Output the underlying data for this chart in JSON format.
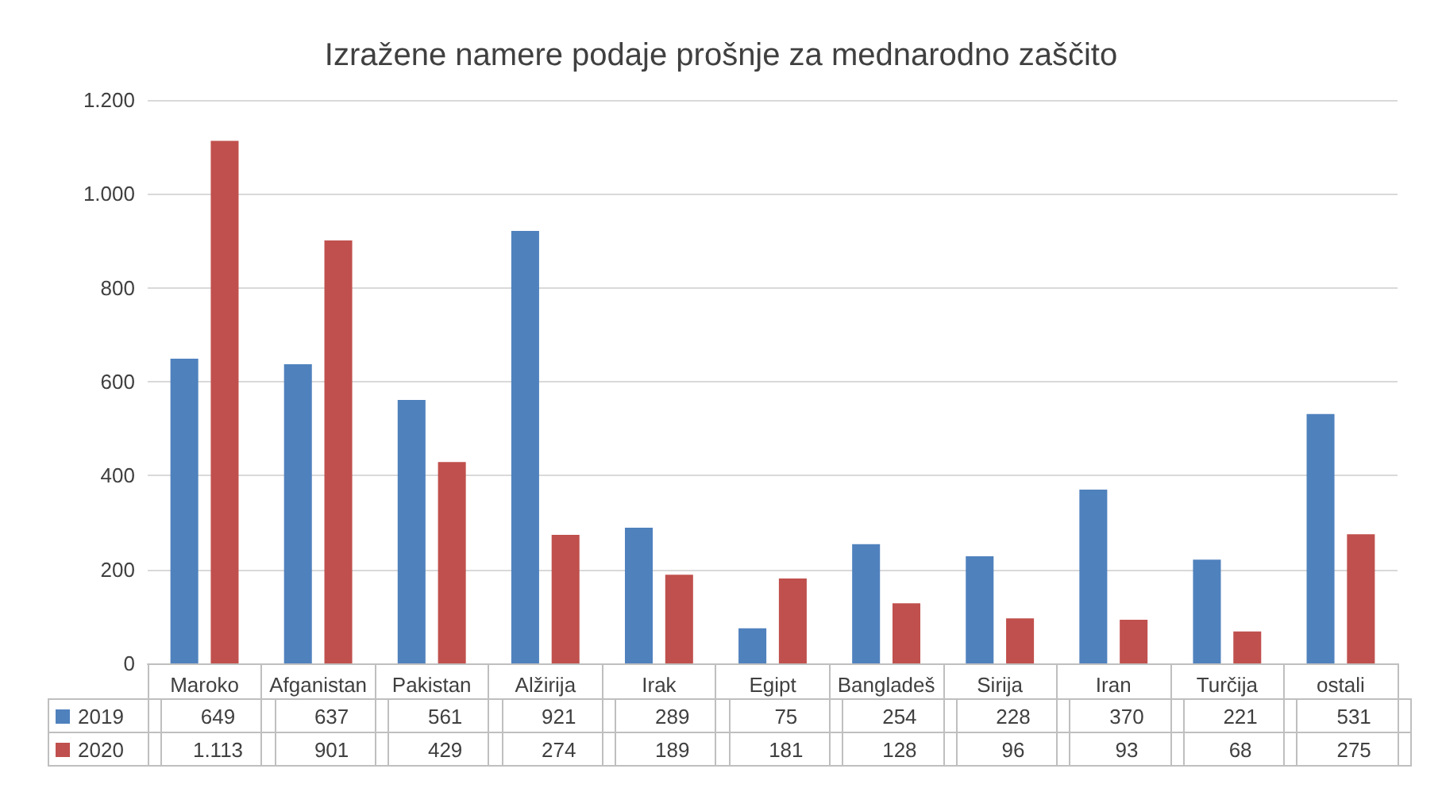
{
  "chart_data": {
    "type": "bar",
    "title": "Izražene namere podaje prošnje za mednarodno zaščito",
    "categories": [
      "Maroko",
      "Afganistan",
      "Pakistan",
      "Alžirija",
      "Irak",
      "Egipt",
      "Bangladeš",
      "Sirija",
      "Iran",
      "Turčija",
      "ostali"
    ],
    "series": [
      {
        "name": "2019",
        "color": "#4f81bd",
        "values": [
          649,
          637,
          561,
          921,
          289,
          75,
          254,
          228,
          370,
          221,
          531
        ],
        "value_labels": [
          "649",
          "637",
          "561",
          "921",
          "289",
          "75",
          "254",
          "228",
          "370",
          "221",
          "531"
        ]
      },
      {
        "name": "2020",
        "color": "#c0504d",
        "values": [
          1113,
          901,
          429,
          274,
          189,
          181,
          128,
          96,
          93,
          68,
          275
        ],
        "value_labels": [
          "1.113",
          "901",
          "429",
          "274",
          "189",
          "181",
          "128",
          "96",
          "93",
          "68",
          "275"
        ]
      }
    ],
    "ylim": [
      0,
      1200
    ],
    "yticks": [
      0,
      200,
      400,
      600,
      800,
      {
        "value": 1000,
        "label": "1.000"
      },
      {
        "value": 1200,
        "label": "1.200"
      }
    ],
    "grid": "y",
    "legend": "bottom"
  }
}
